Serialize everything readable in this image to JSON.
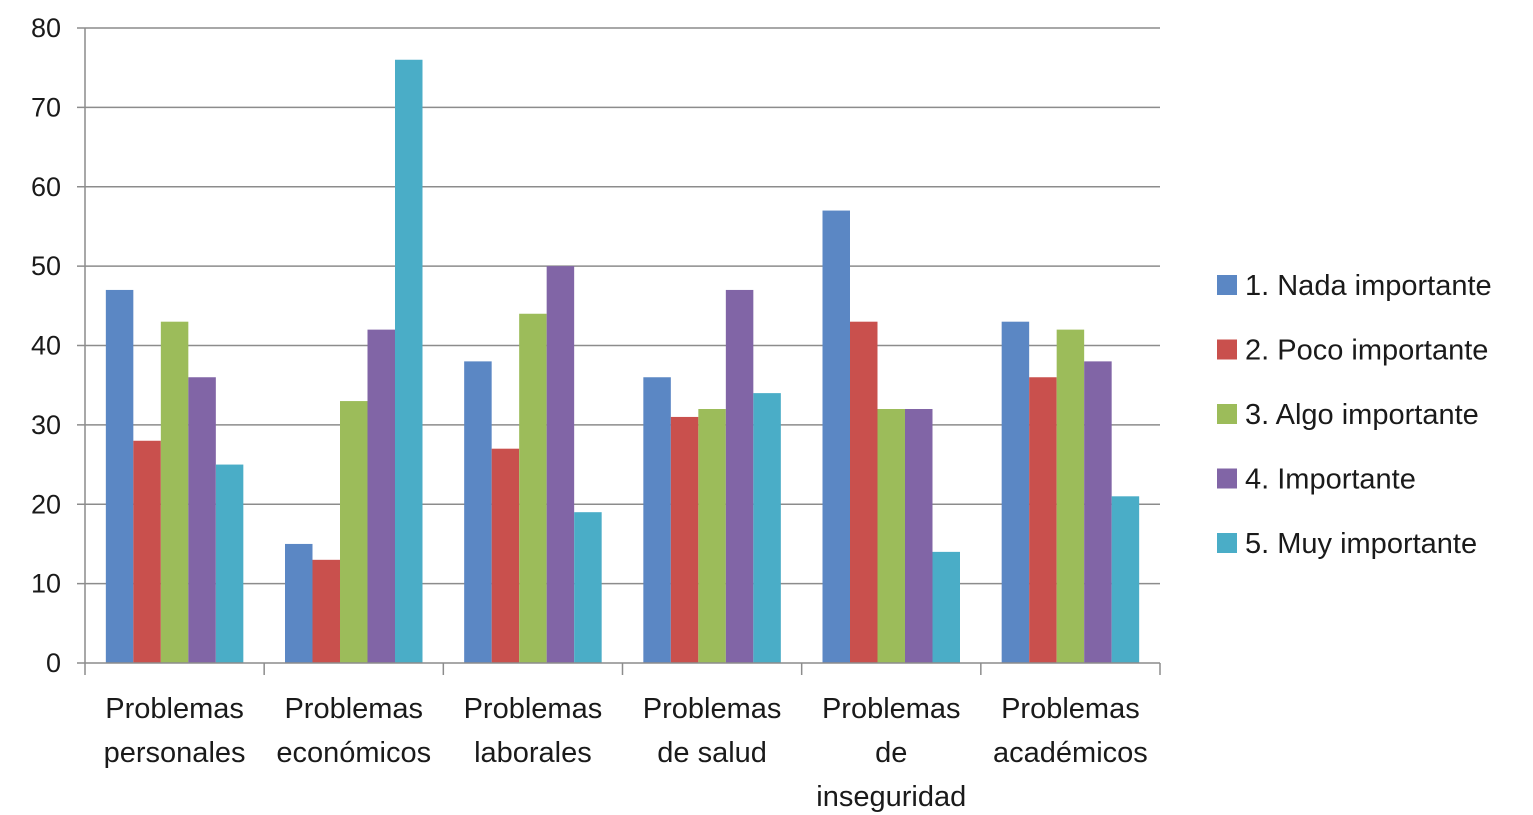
{
  "chart_data": {
    "type": "bar",
    "title": "",
    "xlabel": "",
    "ylabel": "",
    "ylim": [
      0,
      80
    ],
    "yticks": [
      0,
      10,
      20,
      30,
      40,
      50,
      60,
      70,
      80
    ],
    "grid": true,
    "legend_position": "right",
    "categories": [
      "Problemas personales",
      "Problemas económicos",
      "Problemas laborales",
      "Problemas de salud",
      "Problemas de inseguridad",
      "Problemas académicos"
    ],
    "category_lines": [
      [
        "Problemas",
        "personales"
      ],
      [
        "Problemas",
        "económicos"
      ],
      [
        "Problemas",
        "laborales"
      ],
      [
        "Problemas",
        "de salud"
      ],
      [
        "Problemas",
        "de",
        "inseguridad"
      ],
      [
        "Problemas",
        "académicos"
      ]
    ],
    "series": [
      {
        "name": "1. Nada importante",
        "color": "#5b87c4",
        "values": [
          47,
          15,
          38,
          36,
          57,
          43
        ]
      },
      {
        "name": "2. Poco importante",
        "color": "#c9504d",
        "values": [
          28,
          13,
          27,
          31,
          43,
          36
        ]
      },
      {
        "name": "3. Algo importante",
        "color": "#9cbc5a",
        "values": [
          43,
          33,
          44,
          32,
          32,
          42
        ]
      },
      {
        "name": "4. Importante",
        "color": "#8165a6",
        "values": [
          36,
          42,
          50,
          47,
          32,
          38
        ]
      },
      {
        "name": "5. Muy importante",
        "color": "#4aadc7",
        "values": [
          25,
          76,
          19,
          34,
          14,
          21
        ]
      }
    ]
  }
}
